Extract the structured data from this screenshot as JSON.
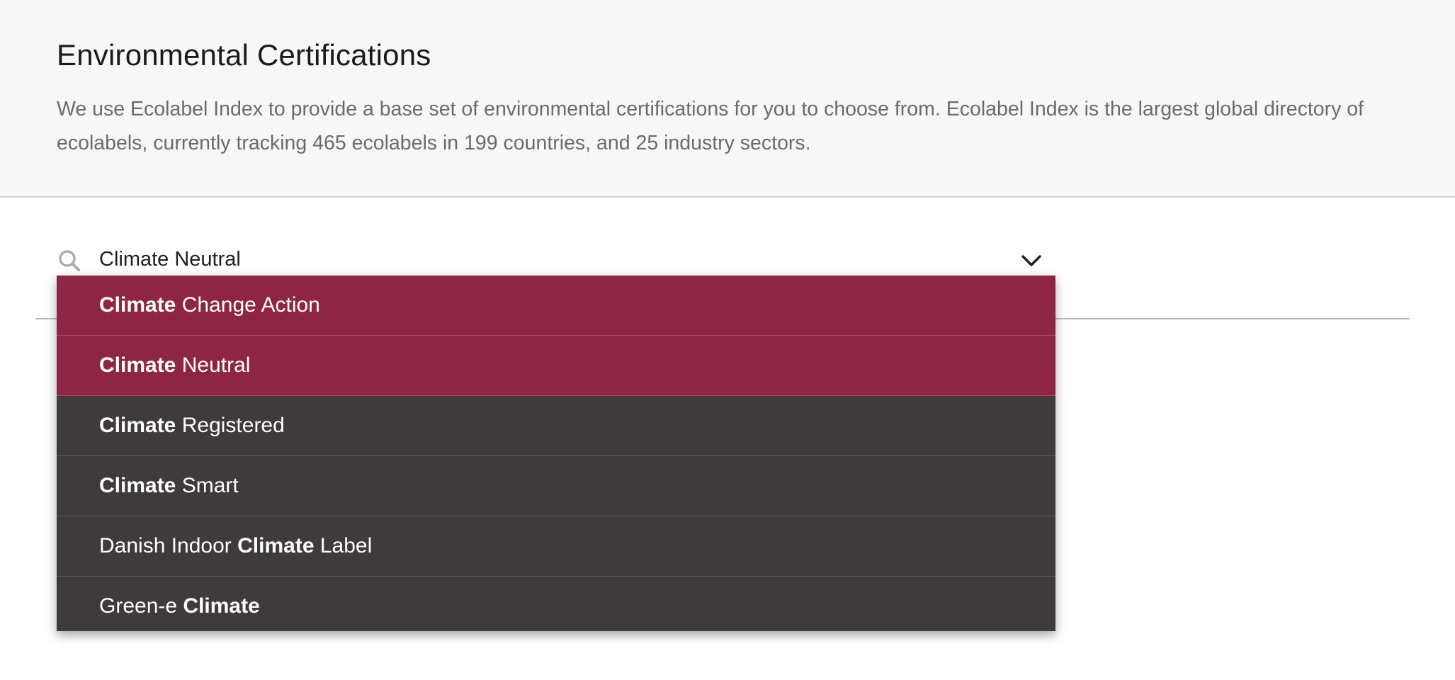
{
  "header": {
    "title": "Environmental Certifications",
    "description": "We use Ecolabel Index to provide a base set of environmental certifications for you to choose from. Ecolabel Index is the largest global directory of ecolabels, currently tracking 465 ecolabels in 199 countries, and 25 industry sectors."
  },
  "search": {
    "value": "Climate Neutral",
    "icon": "search-icon",
    "toggle_icon": "chevron-down-icon"
  },
  "colors": {
    "highlight": "#8f2544",
    "dropdown_bg": "#3f3a3c"
  },
  "options": [
    {
      "pre": "",
      "match": "Climate",
      "post": "Change Action",
      "highlighted": true
    },
    {
      "pre": "",
      "match": "Climate",
      "post": "Neutral",
      "highlighted": true
    },
    {
      "pre": "",
      "match": "Climate",
      "post": "Registered",
      "highlighted": false
    },
    {
      "pre": "",
      "match": "Climate",
      "post": "Smart",
      "highlighted": false
    },
    {
      "pre": "Danish Indoor",
      "match": "Climate",
      "post": "Label",
      "highlighted": false
    },
    {
      "pre": "Green-e",
      "match": "Climate",
      "post": "",
      "highlighted": false
    }
  ]
}
